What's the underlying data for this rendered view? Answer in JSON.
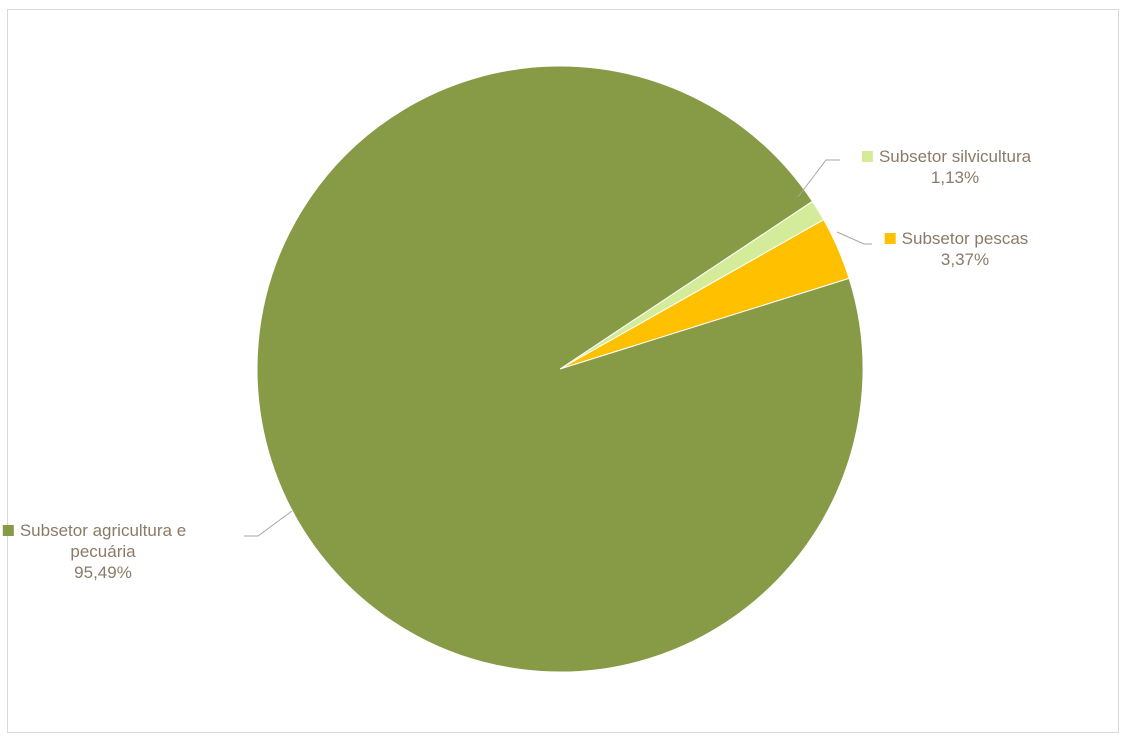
{
  "chart_data": {
    "type": "pie",
    "title": "",
    "slices": [
      {
        "name": "Subsetor silvicultura",
        "name_lines": [
          "Subsetor silvicultura"
        ],
        "value": 1.13,
        "value_label": "1,13%",
        "color": "#D4EB9A"
      },
      {
        "name": "Subsetor pescas",
        "name_lines": [
          "Subsetor pescas"
        ],
        "value": 3.37,
        "value_label": "3,37%",
        "color": "#FFC000"
      },
      {
        "name": "Subsetor agricultura e pecuária",
        "name_lines": [
          "Subsetor agricultura e",
          "pecuária"
        ],
        "value": 95.49,
        "value_label": "95,49%",
        "color": "#879A45"
      }
    ],
    "label_color": "#8C7A68",
    "leader_color": "#A6A6A6",
    "background": "#FFFFFF",
    "border_color": "#D9D9D9"
  }
}
